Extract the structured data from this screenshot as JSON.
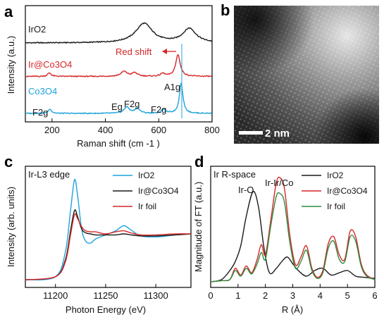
{
  "panels": {
    "a": "a",
    "b": "b",
    "c": "c",
    "d": "d"
  },
  "colors": {
    "black": "#1a1a1a",
    "red": "#d62728",
    "blue": "#1fa3dc",
    "green": "#2e8b3e"
  },
  "image_b": {
    "scalebar_label": "2 nm"
  },
  "chart_data": [
    {
      "panel": "a",
      "type": "line",
      "xlabel": "Raman shift (cm -1 )",
      "ylabel": "Intensity (a.u.)",
      "xlim": [
        100,
        800
      ],
      "xticks": [
        "200",
        "400",
        "600",
        "800"
      ],
      "series": [
        {
          "name": "IrO2",
          "color": "black",
          "offset": 2.0,
          "peaks": [
            [
              545,
              38,
              0.55
            ],
            [
              715,
              30,
              0.4
            ]
          ],
          "x": [
            100,
            800
          ]
        },
        {
          "name": "Ir@Co3O4",
          "color": "red",
          "offset": 1.05,
          "peaks": [
            [
              190,
              8,
              0.1
            ],
            [
              470,
              14,
              0.14
            ],
            [
              510,
              12,
              0.1
            ],
            [
              615,
              10,
              0.08
            ],
            [
              672,
              10,
              0.62
            ]
          ],
          "x": [
            100,
            800
          ]
        },
        {
          "name": "Co3O4",
          "color": "blue",
          "offset": 0.0,
          "peaks": [
            [
              192,
              8,
              0.12
            ],
            [
              480,
              12,
              0.18
            ],
            [
              520,
              11,
              0.14
            ],
            [
              618,
              10,
              0.1
            ],
            [
              684,
              8,
              0.85
            ]
          ],
          "x": [
            100,
            800
          ]
        }
      ],
      "annotations": [
        {
          "text": "Red shift",
          "color": "red"
        },
        {
          "text": "A1g"
        },
        {
          "text": "F2g",
          "at": 190
        },
        {
          "text": "Eg",
          "at": 470
        },
        {
          "text": "F2g",
          "at": 515
        },
        {
          "text": "F2g",
          "at": 618
        }
      ]
    },
    {
      "panel": "c",
      "type": "line",
      "xlabel": "Photon Energy (eV)",
      "ylabel": "Intensity (arb. units)",
      "xlim": [
        11170,
        11335
      ],
      "xticks": [
        "11200",
        "11250",
        "11300"
      ],
      "edge_label": "Ir-L3 edge",
      "series": [
        {
          "name": "IrO2",
          "color": "blue",
          "x": [
            11170,
            11200,
            11210,
            11215,
            11219,
            11222,
            11226,
            11230,
            11235,
            11240,
            11250,
            11260,
            11268,
            11275,
            11285,
            11300,
            11320,
            11335
          ],
          "y": [
            0.02,
            0.05,
            0.3,
            0.7,
            1.0,
            0.85,
            0.52,
            0.4,
            0.38,
            0.42,
            0.46,
            0.5,
            0.55,
            0.51,
            0.45,
            0.44,
            0.46,
            0.47
          ]
        },
        {
          "name": "Ir@Co3O4",
          "color": "black",
          "x": [
            11170,
            11200,
            11210,
            11215,
            11219,
            11222,
            11226,
            11230,
            11235,
            11240,
            11250,
            11260,
            11268,
            11275,
            11285,
            11300,
            11320,
            11335
          ],
          "y": [
            0.02,
            0.05,
            0.22,
            0.5,
            0.7,
            0.64,
            0.52,
            0.48,
            0.47,
            0.46,
            0.46,
            0.46,
            0.47,
            0.46,
            0.45,
            0.45,
            0.46,
            0.47
          ]
        },
        {
          "name": "Ir foil",
          "color": "red",
          "x": [
            11170,
            11200,
            11210,
            11215,
            11219,
            11222,
            11226,
            11230,
            11235,
            11240,
            11250,
            11260,
            11268,
            11275,
            11285,
            11300,
            11320,
            11335
          ],
          "y": [
            0.02,
            0.05,
            0.2,
            0.46,
            0.66,
            0.62,
            0.54,
            0.5,
            0.49,
            0.49,
            0.47,
            0.49,
            0.5,
            0.48,
            0.46,
            0.46,
            0.47,
            0.47
          ]
        }
      ]
    },
    {
      "panel": "d",
      "type": "line",
      "xlabel": "R (Å)",
      "ylabel": "Magnitude of FT (a.u.)",
      "xlim": [
        0,
        6
      ],
      "xticks": [
        "0",
        "1",
        "2",
        "3",
        "4",
        "5",
        "6"
      ],
      "space_label": "Ir R-space",
      "annotations": [
        {
          "text": "Ir-O"
        },
        {
          "text": "Ir-Ir/Co"
        }
      ],
      "series": [
        {
          "name": "IrO2",
          "color": "black",
          "x": [
            0,
            0.4,
            0.7,
            0.9,
            1.1,
            1.3,
            1.55,
            1.75,
            1.95,
            2.15,
            2.4,
            2.6,
            2.8,
            3.0,
            3.2,
            3.5,
            3.8,
            4.1,
            4.4,
            4.7,
            5.0,
            5.3,
            5.6,
            6.0
          ],
          "y": [
            0.0,
            0.02,
            0.1,
            0.18,
            0.32,
            0.58,
            0.8,
            0.66,
            0.3,
            0.08,
            0.12,
            0.18,
            0.22,
            0.16,
            0.1,
            0.05,
            0.1,
            0.12,
            0.06,
            0.08,
            0.1,
            0.05,
            0.04,
            0.03
          ]
        },
        {
          "name": "Ir@Co3O4",
          "color": "red",
          "x": [
            0,
            0.4,
            0.7,
            0.9,
            1.1,
            1.3,
            1.5,
            1.7,
            1.85,
            2.0,
            2.2,
            2.4,
            2.55,
            2.7,
            2.9,
            3.1,
            3.3,
            3.5,
            3.7,
            3.9,
            4.1,
            4.3,
            4.5,
            4.7,
            4.9,
            5.1,
            5.3,
            5.5,
            5.7,
            6.0
          ],
          "y": [
            0.0,
            0.01,
            0.02,
            0.12,
            0.06,
            0.14,
            0.08,
            0.2,
            0.33,
            0.24,
            0.55,
            0.88,
            0.92,
            0.82,
            0.4,
            0.15,
            0.22,
            0.32,
            0.12,
            0.04,
            0.1,
            0.34,
            0.4,
            0.24,
            0.2,
            0.45,
            0.4,
            0.16,
            0.06,
            0.02
          ]
        },
        {
          "name": "Ir foil",
          "color": "green",
          "x": [
            0,
            0.4,
            0.7,
            0.9,
            1.1,
            1.3,
            1.5,
            1.7,
            1.85,
            2.0,
            2.2,
            2.4,
            2.55,
            2.7,
            2.9,
            3.1,
            3.3,
            3.5,
            3.7,
            3.9,
            4.1,
            4.3,
            4.5,
            4.7,
            4.9,
            5.1,
            5.3,
            5.5,
            5.7,
            6.0
          ],
          "y": [
            0.0,
            0.01,
            0.02,
            0.1,
            0.05,
            0.12,
            0.07,
            0.16,
            0.26,
            0.2,
            0.5,
            0.76,
            0.78,
            0.7,
            0.34,
            0.12,
            0.18,
            0.28,
            0.1,
            0.03,
            0.08,
            0.3,
            0.36,
            0.2,
            0.18,
            0.4,
            0.36,
            0.14,
            0.05,
            0.02
          ]
        }
      ]
    }
  ]
}
